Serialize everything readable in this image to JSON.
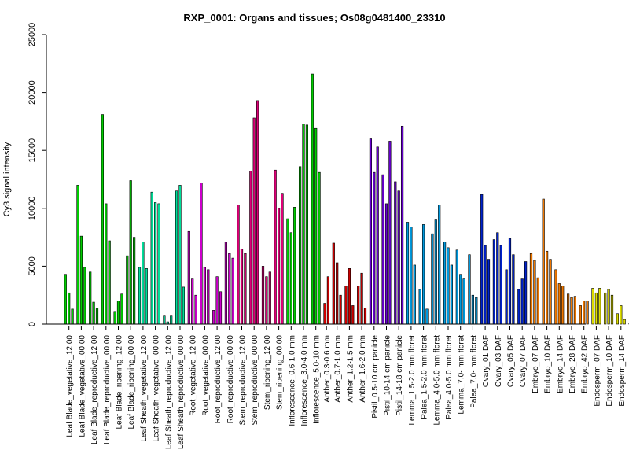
{
  "chart_data": {
    "type": "bar",
    "title": "RXP_0001: Organs and tissues; Os08g0481400_23310",
    "ylabel": "Cy3 signal intensity",
    "xlabel": "",
    "ylim": [
      0,
      25000
    ],
    "yticks": [
      0,
      5000,
      10000,
      15000,
      20000,
      25000
    ],
    "grid": false,
    "legend": "none",
    "groups": [
      {
        "label": "Leaf Blade_vegetative_12:00",
        "color": "#00cc00",
        "values": [
          4300,
          2700,
          1300
        ]
      },
      {
        "label": "Leaf Blade_vegetative_00:00",
        "color": "#00cc00",
        "values": [
          12000,
          7600,
          4900
        ]
      },
      {
        "label": "Leaf Blade_reproductive_12:00",
        "color": "#00cc00",
        "values": [
          4500,
          1900,
          1400
        ]
      },
      {
        "label": "Leaf Blade_reproductive_00:00",
        "color": "#00cc00",
        "values": [
          18100,
          10400,
          7200
        ]
      },
      {
        "label": "Leaf Blade_ripening_12:00",
        "color": "#00cc00",
        "values": [
          1100,
          2000,
          2600
        ]
      },
      {
        "label": "Leaf Blade_ripening_00:00",
        "color": "#00cc00",
        "values": [
          5900,
          12400,
          7500
        ]
      },
      {
        "label": "Leaf Sheath_vegetative_12:00",
        "color": "#00dd99",
        "values": [
          4900,
          7100,
          4800
        ]
      },
      {
        "label": "Leaf Sheath_vegetative_00:00",
        "color": "#00dd99",
        "values": [
          11400,
          10500,
          10400
        ]
      },
      {
        "label": "Leaf Sheath_reproductive_12:00",
        "color": "#00dd99",
        "values": [
          700,
          200,
          700
        ]
      },
      {
        "label": "Leaf Sheath_reproductive_00:00",
        "color": "#00dd99",
        "values": [
          11500,
          12000,
          3200
        ]
      },
      {
        "label": "Root_vegetative_12:00",
        "color": "#cc00cc",
        "values": [
          8000,
          3900,
          2500
        ]
      },
      {
        "label": "Root_vegetative_00:00",
        "color": "#cc00cc",
        "values": [
          12200,
          4900,
          4700
        ]
      },
      {
        "label": "Root_reproductive_12:00",
        "color": "#cc00cc",
        "values": [
          1200,
          4100,
          2800
        ]
      },
      {
        "label": "Root_reproductive_00:00",
        "color": "#cc00cc",
        "values": [
          7100,
          6100,
          5700
        ]
      },
      {
        "label": "Stem_reproductive_12:00",
        "color": "#dd0077",
        "values": [
          10300,
          6500,
          6100
        ]
      },
      {
        "label": "Stem_reproductive_00:00",
        "color": "#dd0077",
        "values": [
          13200,
          17800,
          19300
        ]
      },
      {
        "label": "Stem_ripening_12:00",
        "color": "#dd0077",
        "values": [
          5000,
          4100,
          4500
        ]
      },
      {
        "label": "Stem_ripening_00:00",
        "color": "#dd0077",
        "values": [
          13300,
          10000,
          11300
        ]
      },
      {
        "label": "Inflorescence_0.6-1.0 mm",
        "color": "#00cc00",
        "values": [
          9100,
          7900,
          10100
        ]
      },
      {
        "label": "Inflorescence_3.0-4.0 mm",
        "color": "#00cc00",
        "values": [
          13600,
          17300,
          17200
        ]
      },
      {
        "label": "Inflorescence_5.0-10 mm",
        "color": "#00cc00",
        "values": [
          21600,
          16900,
          13100
        ]
      },
      {
        "label": "Anther_0.3-0.6 mm",
        "color": "#cc0000",
        "values": [
          1800,
          4100
        ]
      },
      {
        "label": "Anther_0.7-1.0 mm",
        "color": "#cc0000",
        "values": [
          7000,
          5300,
          2500
        ]
      },
      {
        "label": "Anther_1.2-1.5 mm",
        "color": "#cc0000",
        "values": [
          3300,
          4800,
          1600
        ]
      },
      {
        "label": "Anther_1.6-2.0 mm",
        "color": "#cc0000",
        "values": [
          3300,
          4400,
          1400
        ]
      },
      {
        "label": "Pistil_0.5-10 cm panicle",
        "color": "#6600cc",
        "values": [
          16000,
          13100,
          15300
        ]
      },
      {
        "label": "Pistil_10-14 cm panicle",
        "color": "#6600cc",
        "values": [
          12900,
          10400,
          15800
        ]
      },
      {
        "label": "Pistil_14-18 cm panicle",
        "color": "#6600cc",
        "values": [
          12300,
          11500,
          17100
        ]
      },
      {
        "label": "Lemma_1.5-2.0 mm floret",
        "color": "#0099dd",
        "values": [
          8800,
          8400,
          5100
        ]
      },
      {
        "label": "Palea_1.5-2.0 mm floret",
        "color": "#0099dd",
        "values": [
          3000,
          8600,
          1300
        ]
      },
      {
        "label": "Lemma_4.0-5.0 mm floret",
        "color": "#0099dd",
        "values": [
          7800,
          9000,
          10300
        ]
      },
      {
        "label": "Palea_4.0-5.0 mm floret",
        "color": "#0099dd",
        "values": [
          7100,
          6600,
          5100
        ]
      },
      {
        "label": "Lemma_7.0- mm floret",
        "color": "#0099dd",
        "values": [
          6400,
          4300,
          3900
        ]
      },
      {
        "label": "Palea_7.0- mm floret",
        "color": "#0099dd",
        "values": [
          6000,
          2500,
          2300
        ]
      },
      {
        "label": "Ovary_01 DAF",
        "color": "#0022cc",
        "values": [
          11200,
          6800,
          5600
        ]
      },
      {
        "label": "Ovary_03 DAF",
        "color": "#0022cc",
        "values": [
          7300,
          7900,
          6800
        ]
      },
      {
        "label": "Ovary_05 DAF",
        "color": "#0022cc",
        "values": [
          4700,
          7400,
          6000
        ]
      },
      {
        "label": "Ovary_07 DAF",
        "color": "#0022cc",
        "values": [
          3000,
          3900,
          5400
        ]
      },
      {
        "label": "Embryo_07 DAF",
        "color": "#ee7700",
        "values": [
          6100,
          5500,
          4000
        ]
      },
      {
        "label": "Embryo_10 DAF",
        "color": "#ee7700",
        "values": [
          10800,
          6300,
          5600
        ]
      },
      {
        "label": "Embryo_14 DAF",
        "color": "#ee7700",
        "values": [
          4700,
          3500,
          3300
        ]
      },
      {
        "label": "Embryo_28 DAF",
        "color": "#ee7700",
        "values": [
          2600,
          2300,
          2400
        ]
      },
      {
        "label": "Embryo_42 DAF",
        "color": "#ee7700",
        "values": [
          1600,
          2000,
          2000
        ]
      },
      {
        "label": "Endosperm_07 DAF",
        "color": "#dddd00",
        "values": [
          3100,
          2700,
          3100
        ]
      },
      {
        "label": "Endosperm_10 DAF",
        "color": "#dddd00",
        "values": [
          2700,
          3000,
          2500
        ]
      },
      {
        "label": "Endosperm_14 DAF",
        "color": "#dddd00",
        "values": [
          900,
          1600,
          400
        ]
      },
      {
        "label": "Endosperm_28 DAF",
        "color": "#dddd00",
        "values": [
          50,
          50,
          50
        ]
      },
      {
        "label": "Endosperm_42 DAF",
        "color": "#dddd00",
        "values": [
          50,
          50,
          50
        ]
      }
    ]
  }
}
